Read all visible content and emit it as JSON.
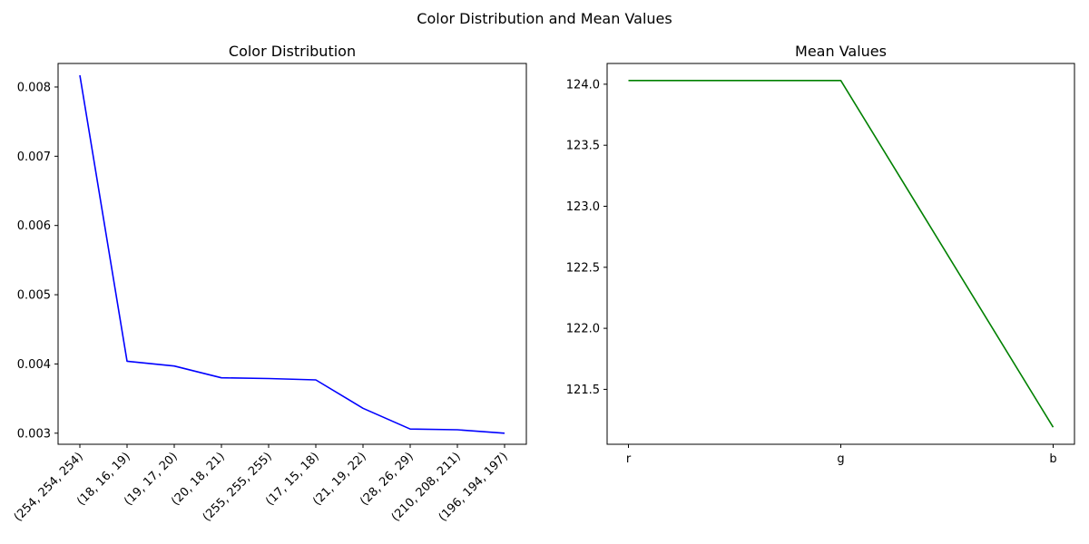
{
  "figure": {
    "suptitle": "Color Distribution and Mean Values"
  },
  "chart_data": [
    {
      "type": "line",
      "title": "Color Distribution",
      "xlabel": "",
      "ylabel": "",
      "categories": [
        "(254, 254, 254)",
        "(18, 16, 19)",
        "(19, 17, 20)",
        "(20, 18, 21)",
        "(255, 255, 255)",
        "(17, 15, 18)",
        "(21, 19, 22)",
        "(28, 26, 29)",
        "(210, 208, 211)",
        "(196, 194, 197)"
      ],
      "values": [
        0.00817,
        0.00404,
        0.00397,
        0.0038,
        0.00379,
        0.00377,
        0.00336,
        0.00306,
        0.00305,
        0.003
      ],
      "ylim": [
        0.00284,
        0.00834
      ],
      "yticks": [
        0.003,
        0.004,
        0.005,
        0.006,
        0.007,
        0.008
      ],
      "ytick_labels": [
        "0.003",
        "0.004",
        "0.005",
        "0.006",
        "0.007",
        "0.008"
      ],
      "color": "#0000ff",
      "grid": false
    },
    {
      "type": "line",
      "title": "Mean Values",
      "xlabel": "",
      "ylabel": "",
      "categories": [
        "r",
        "g",
        "b"
      ],
      "values": [
        124.03,
        124.03,
        121.19
      ],
      "ylim": [
        121.05,
        124.17
      ],
      "yticks": [
        121.5,
        122.0,
        122.5,
        123.0,
        123.5,
        124.0
      ],
      "ytick_labels": [
        "121.5",
        "122.0",
        "122.5",
        "123.0",
        "123.5",
        "124.0"
      ],
      "color": "#008000",
      "grid": false
    }
  ]
}
